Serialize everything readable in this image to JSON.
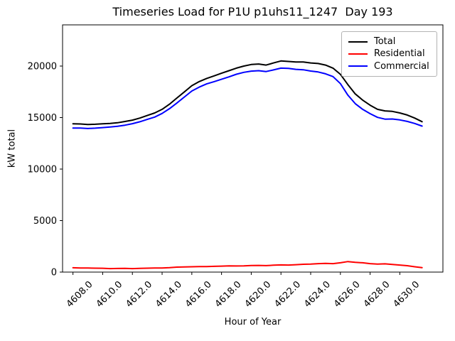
{
  "figure": {
    "background": "#ffffff"
  },
  "chart_data": {
    "type": "line",
    "title": "Timeseries Load for P1U p1uhs11_1247  Day 193",
    "xlabel": "Hour of Year",
    "ylabel": "kW total",
    "grid": false,
    "legend_position": "upper right",
    "xlim": [
      4607.3,
      4632.9
    ],
    "ylim": [
      0,
      24000
    ],
    "x_ticks": [
      {
        "value": 4608,
        "label": "4608.0"
      },
      {
        "value": 4610,
        "label": "4610.0"
      },
      {
        "value": 4612,
        "label": "4612.0"
      },
      {
        "value": 4614,
        "label": "4614.0"
      },
      {
        "value": 4616,
        "label": "4616.0"
      },
      {
        "value": 4618,
        "label": "4618.0"
      },
      {
        "value": 4620,
        "label": "4620.0"
      },
      {
        "value": 4622,
        "label": "4622.0"
      },
      {
        "value": 4624,
        "label": "4624.0"
      },
      {
        "value": 4626,
        "label": "4626.0"
      },
      {
        "value": 4628,
        "label": "4628.0"
      },
      {
        "value": 4630,
        "label": "4630.0"
      }
    ],
    "y_ticks": [
      {
        "value": 0,
        "label": "0"
      },
      {
        "value": 5000,
        "label": "5000"
      },
      {
        "value": 10000,
        "label": "10000"
      },
      {
        "value": 15000,
        "label": "15000"
      },
      {
        "value": 20000,
        "label": "20000"
      }
    ],
    "x": [
      4608.0,
      4608.5,
      4609.0,
      4609.5,
      4610.0,
      4610.5,
      4611.0,
      4611.5,
      4612.0,
      4612.5,
      4613.0,
      4613.5,
      4614.0,
      4614.5,
      4615.0,
      4615.5,
      4616.0,
      4616.5,
      4617.0,
      4617.5,
      4618.0,
      4618.5,
      4619.0,
      4619.5,
      4620.0,
      4620.5,
      4621.0,
      4621.5,
      4622.0,
      4622.5,
      4623.0,
      4623.5,
      4624.0,
      4624.5,
      4625.0,
      4625.5,
      4626.0,
      4626.5,
      4627.0,
      4627.5,
      4628.0,
      4628.5,
      4629.0,
      4629.5,
      4630.0,
      4630.5,
      4631.0,
      4631.5
    ],
    "series": [
      {
        "name": "Total",
        "color": "#000000",
        "values": [
          14400,
          14380,
          14330,
          14350,
          14400,
          14430,
          14500,
          14620,
          14750,
          14950,
          15200,
          15450,
          15800,
          16300,
          16900,
          17500,
          18100,
          18500,
          18800,
          19050,
          19300,
          19550,
          19800,
          20000,
          20150,
          20200,
          20100,
          20300,
          20500,
          20450,
          20400,
          20400,
          20300,
          20250,
          20100,
          19800,
          19200,
          18200,
          17300,
          16700,
          16200,
          15800,
          15650,
          15600,
          15450,
          15250,
          14950,
          14600
        ]
      },
      {
        "name": "Residential",
        "color": "#ff0000",
        "values": [
          420,
          400,
          390,
          380,
          370,
          340,
          350,
          360,
          340,
          360,
          380,
          400,
          400,
          430,
          480,
          500,
          520,
          540,
          530,
          560,
          580,
          600,
          590,
          610,
          640,
          650,
          630,
          670,
          700,
          680,
          720,
          760,
          780,
          820,
          850,
          820,
          900,
          1020,
          950,
          900,
          820,
          780,
          800,
          740,
          680,
          620,
          520,
          430
        ]
      },
      {
        "name": "Commercial",
        "color": "#0000ff",
        "values": [
          13980,
          13980,
          13940,
          13970,
          14030,
          14090,
          14150,
          14260,
          14410,
          14590,
          14820,
          15050,
          15400,
          15870,
          16420,
          17000,
          17580,
          17960,
          18270,
          18490,
          18720,
          18950,
          19210,
          19390,
          19510,
          19550,
          19470,
          19630,
          19800,
          19770,
          19680,
          19640,
          19520,
          19430,
          19250,
          18980,
          18300,
          17180,
          16350,
          15800,
          15380,
          15020,
          14850,
          14860,
          14770,
          14630,
          14430,
          14170
        ]
      }
    ]
  }
}
